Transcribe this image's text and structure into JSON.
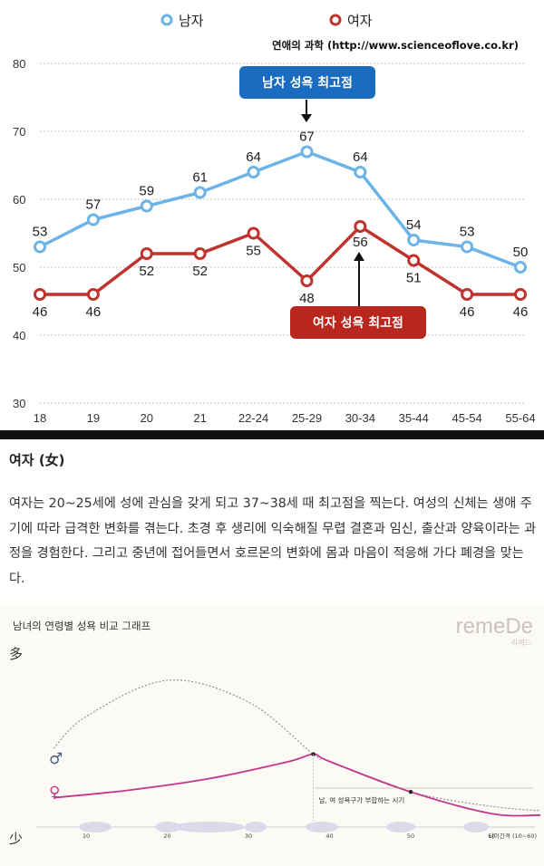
{
  "chart_data": [
    {
      "type": "line",
      "categories": [
        "18",
        "19",
        "20",
        "21",
        "22-24",
        "25-29",
        "30-34",
        "35-44",
        "45-54",
        "55-64"
      ],
      "series": [
        {
          "name": "남자",
          "color": "#6cb4e8",
          "values": [
            53,
            57,
            59,
            61,
            64,
            67,
            64,
            54,
            53,
            50
          ]
        },
        {
          "name": "여자",
          "color": "#c0332d",
          "values": [
            46,
            46,
            52,
            52,
            55,
            48,
            56,
            51,
            46,
            46
          ]
        }
      ],
      "ylim": [
        30,
        80
      ],
      "yticks": [
        30,
        40,
        50,
        60,
        70,
        80
      ],
      "grid": true,
      "legend": "top",
      "source": "연애의 과학 (http://www.scienceoflove.co.kr)",
      "annotations": {
        "male_peak": "남자 성욕 최고점",
        "female_peak": "여자 성욕 최고점"
      }
    },
    {
      "type": "line",
      "title": "남녀의 연령별 성욕 비교 그래프",
      "watermark": "remeDe",
      "watermark_sub": "리메드",
      "y_high_label": "多",
      "y_low_label": "少",
      "xlabel": "나이간격 (10~60)",
      "x_ticks": [
        10,
        20,
        30,
        40,
        50,
        60
      ],
      "series": [
        {
          "name": "♂",
          "color": "#4a5a8c",
          "points": [
            [
              6,
              48
            ],
            [
              10,
              70
            ],
            [
              20,
              95
            ],
            [
              30,
              80
            ],
            [
              38,
              44
            ],
            [
              40,
              39
            ],
            [
              50,
              18
            ],
            [
              60,
              8
            ],
            [
              66,
              5
            ]
          ]
        },
        {
          "name": "♀",
          "color": "#c2378b",
          "points": [
            [
              6,
              14
            ],
            [
              15,
              19
            ],
            [
              25,
              27
            ],
            [
              35,
              39
            ],
            [
              38,
              44
            ],
            [
              40,
              39
            ],
            [
              50,
              18
            ],
            [
              60,
              3
            ],
            [
              66,
              2
            ]
          ]
        }
      ],
      "annotation": "남, 여 성욕구가 부합하는 시기"
    }
  ],
  "article": {
    "title": "여자 (女)",
    "body": "여자는 20~25세에 성에 관심을 갖게 되고 37~38세 때 최고점을 찍는다. 여성의 신체는 생애 주기에 따라 급격한 변화를 겪는다. 초경 후 생리에 익숙해질 무렵 결혼과 임신, 출산과 양육이라는 과정을 경험한다. 그리고 중년에 접어들면서 호르몬의 변화에 몸과 마음이 적응해 가다 폐경을 맞는다."
  }
}
